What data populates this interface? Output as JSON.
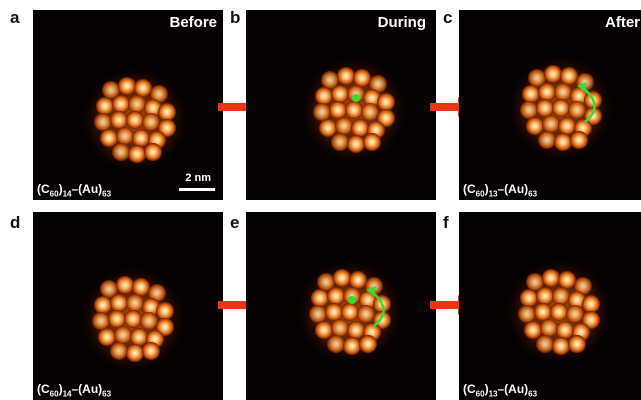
{
  "panels": [
    {
      "letter": "a",
      "title": "Before",
      "formula": {
        "c_count": "14",
        "au_count": "63"
      },
      "scale": "2 nm",
      "dot": false,
      "arrow": false
    },
    {
      "letter": "b",
      "title": "During",
      "formula": null,
      "dot": true,
      "arrow": false
    },
    {
      "letter": "c",
      "title": "After",
      "formula": {
        "c_count": "13",
        "au_count": "63"
      },
      "dot": false,
      "arrow": true
    },
    {
      "letter": "d",
      "title": "",
      "formula": {
        "c_count": "14",
        "au_count": "63"
      },
      "dot": false,
      "arrow": false
    },
    {
      "letter": "e",
      "title": "",
      "formula": null,
      "dot": true,
      "arrow": true
    },
    {
      "letter": "f",
      "title": "",
      "formula": {
        "c_count": "13",
        "au_count": "63"
      },
      "dot": false,
      "arrow": false
    }
  ],
  "formula_parts": {
    "c": "C",
    "c_sub": "60",
    "au": "(Au)"
  },
  "colors": {
    "arrow": "#ee3311",
    "marker": "#33dd33",
    "glow": "#ff9a30"
  }
}
